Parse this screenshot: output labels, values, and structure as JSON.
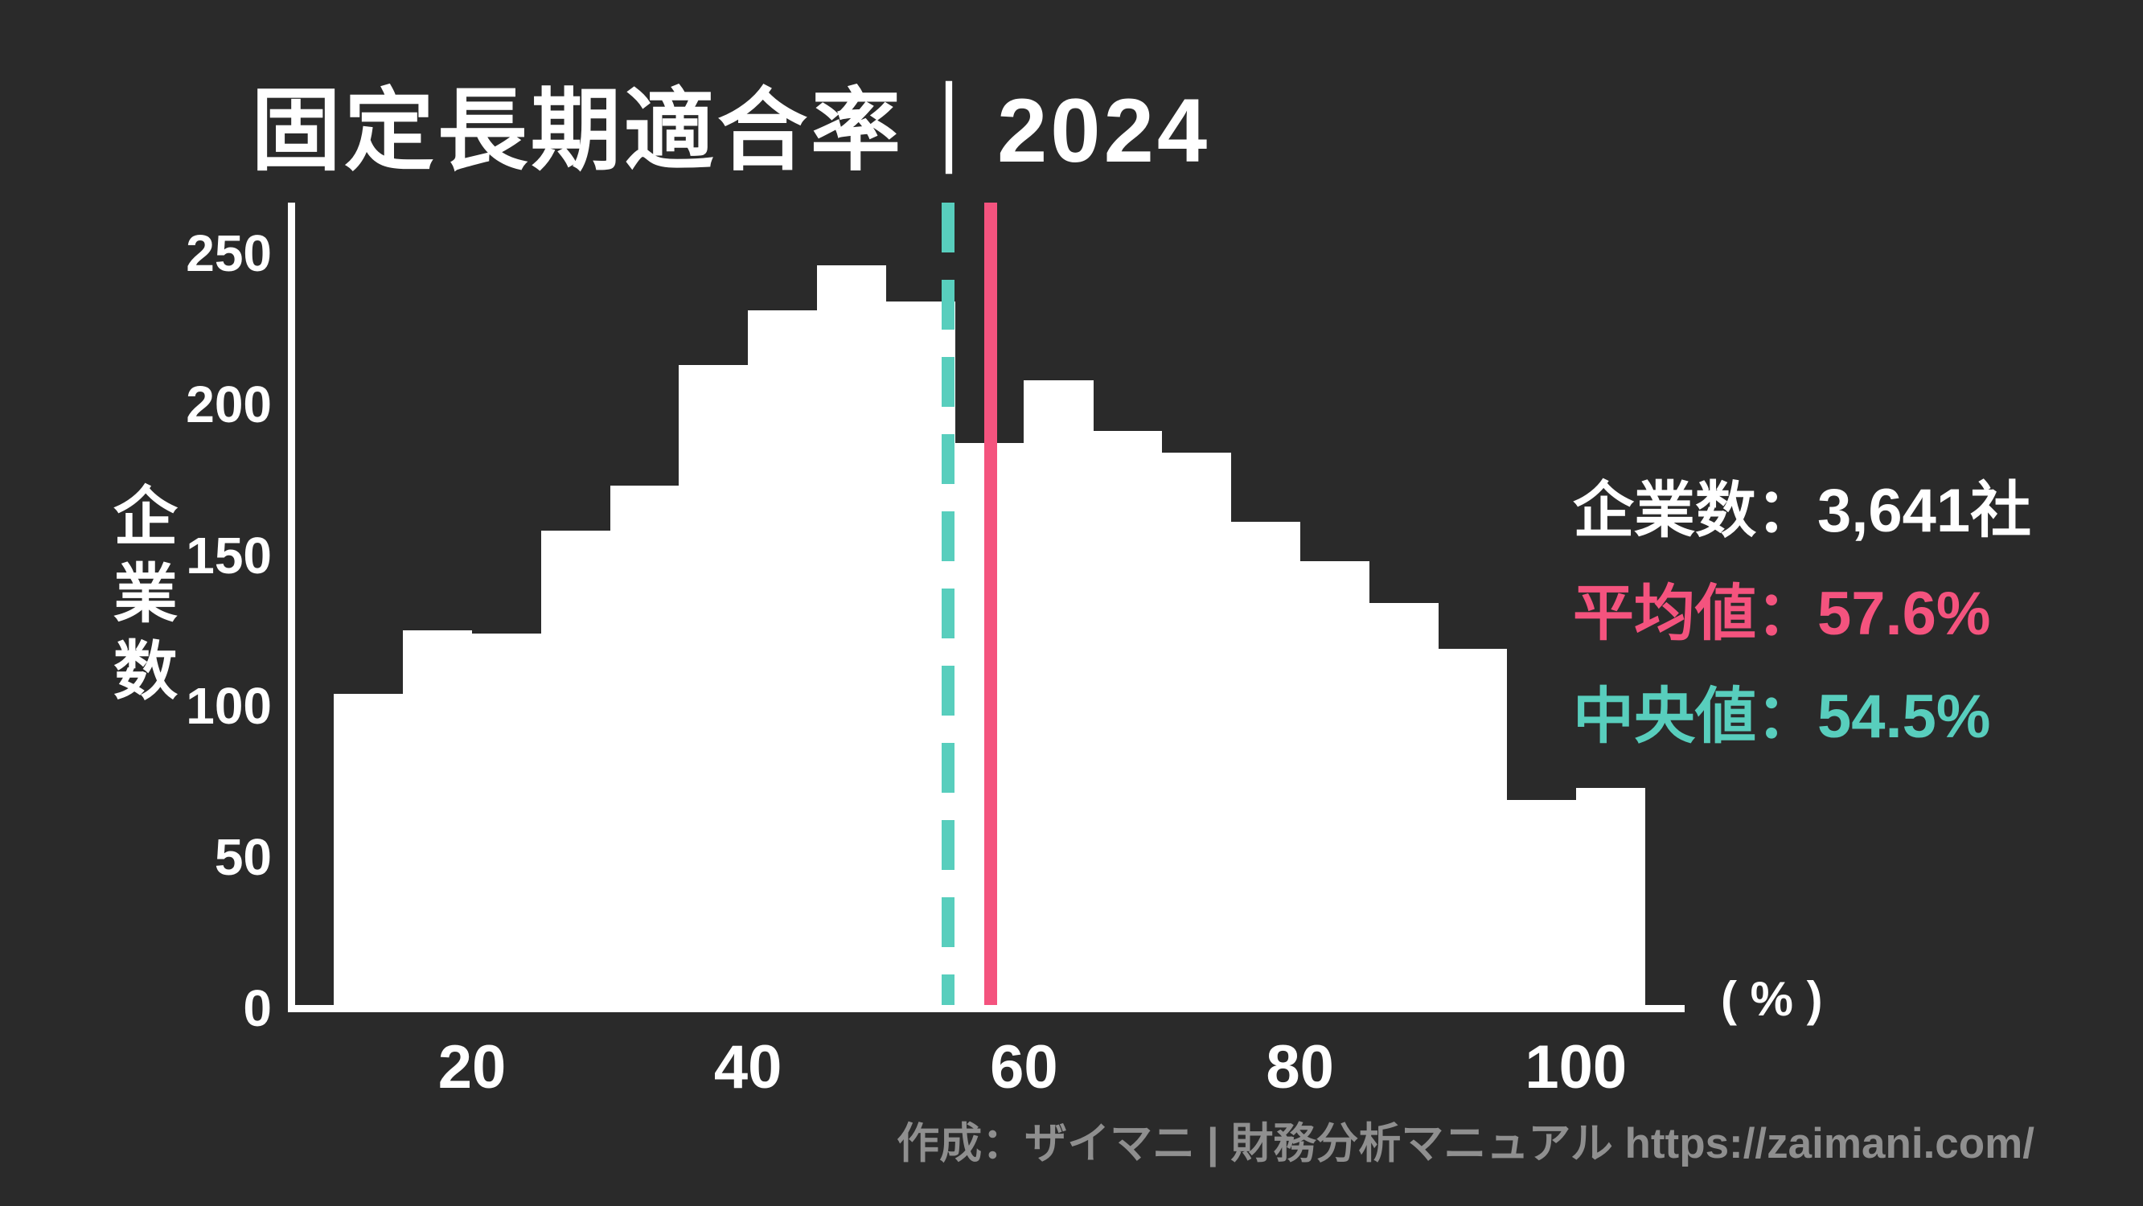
{
  "title": "固定長期適合率｜2024",
  "y_axis_title": "企業数",
  "x_unit_label": "( % )",
  "legend": {
    "companies": "企業数：3,641社",
    "mean": "平均値：57.6%",
    "median": "中央値：54.5%"
  },
  "footer": "作成：ザイマニ | 財務分析マニュアル https://zaimani.com/",
  "colors": {
    "background": "#2A2A2A",
    "bar": "#FFFFFF",
    "mean_line": "#F4537E",
    "median_line": "#58CEBD",
    "text": "#FFFFFF",
    "footer_text": "#8F8F8F"
  },
  "chart_data": {
    "type": "bar",
    "title": "固定長期適合率｜2024",
    "xlabel": "(%)",
    "ylabel": "企業数",
    "bin_width": 5,
    "bin_starts": [
      10,
      15,
      20,
      25,
      30,
      35,
      40,
      45,
      50,
      55,
      60,
      65,
      70,
      75,
      80,
      85,
      90,
      95,
      100
    ],
    "values": [
      103,
      124,
      123,
      157,
      172,
      212,
      230,
      245,
      233,
      186,
      207,
      190,
      183,
      160,
      147,
      133,
      118,
      68,
      72
    ],
    "x_ticks": [
      20,
      40,
      60,
      80,
      100
    ],
    "y_ticks": [
      0,
      50,
      100,
      150,
      200,
      250
    ],
    "xlim": [
      10,
      105
    ],
    "ylim": [
      0,
      265
    ],
    "mean": 57.6,
    "median": 54.5,
    "total_companies": "3,641",
    "grid": false,
    "legend_position": "right"
  }
}
